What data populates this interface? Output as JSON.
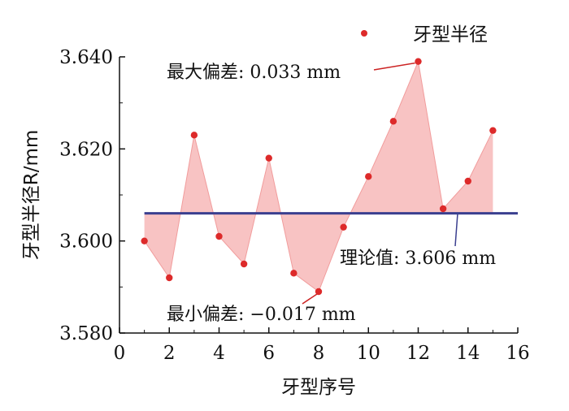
{
  "chart_data": {
    "type": "line",
    "xlabel": "牙型序号",
    "ylabel": "牙型半径R/mm",
    "xlim": [
      0,
      16
    ],
    "ylim": [
      3.58,
      3.64
    ],
    "xticks": [
      "0",
      "2",
      "4",
      "6",
      "8",
      "10",
      "12",
      "14",
      "16"
    ],
    "yticks": [
      "3.580",
      "3.600",
      "3.620",
      "3.640"
    ],
    "x": [
      1,
      2,
      3,
      4,
      5,
      6,
      7,
      8,
      9,
      10,
      11,
      12,
      13,
      14,
      15
    ],
    "series": [
      {
        "name": "牙型半径",
        "values": [
          3.6,
          3.592,
          3.623,
          3.601,
          3.595,
          3.618,
          3.593,
          3.589,
          3.603,
          3.614,
          3.626,
          3.639,
          3.607,
          3.613,
          3.624
        ]
      }
    ],
    "reference_line": {
      "value": 3.606
    },
    "annotations": {
      "max": "最大偏差: 0.033 mm",
      "min": "最小偏差: −0.017 mm",
      "ref": "理论值: 3.606 mm"
    },
    "legend_position": "top-right",
    "grid": false,
    "colors": {
      "points": "#dd2a2a",
      "fill": "#f7b8b8",
      "reference": "#3a3f8f",
      "annotation_line": "#cc2222"
    }
  }
}
